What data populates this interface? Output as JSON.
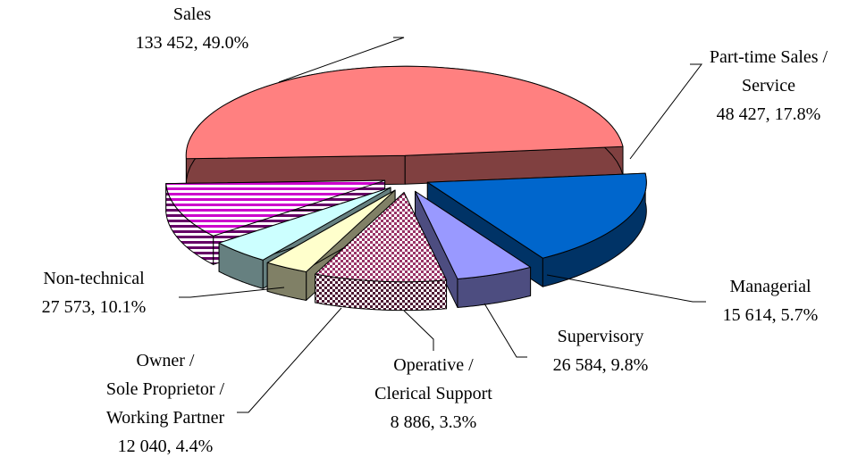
{
  "chart_data": {
    "type": "pie3d",
    "categories": [
      "Sales",
      "Part-time Sales /\nService",
      "Managerial",
      "Supervisory",
      "Operative /\nClerical Support",
      "Owner /\nSole Proprietor /\nWorking Partner",
      "Non-technical"
    ],
    "values": [
      133452,
      48427,
      15614,
      26584,
      8886,
      12040,
      27573
    ],
    "value_labels": [
      "133 452, 49.0%",
      "48 427, 17.8%",
      "15 614, 5.7%",
      "26 584, 9.8%",
      "8 886, 3.3%",
      "12 040, 4.4%",
      "27 573, 10.1%"
    ],
    "colors": [
      "#ff8080",
      "#0066cc",
      "#9999ff",
      "#993366",
      "#ffffcc",
      "#ccffff",
      "#cc00cc"
    ],
    "patterns": [
      null,
      null,
      null,
      "checker",
      null,
      null,
      "stripes"
    ]
  }
}
